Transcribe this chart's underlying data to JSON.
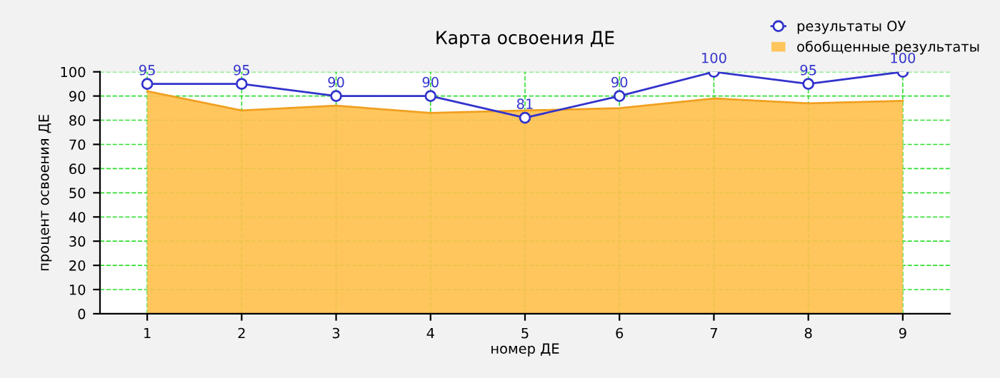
{
  "chart_data": {
    "type": "line",
    "title": "Карта освоения ДЕ",
    "xlabel": "номер ДЕ",
    "ylabel": "процент освоения ДЕ",
    "categories": [
      "1",
      "2",
      "3",
      "4",
      "5",
      "6",
      "7",
      "8",
      "9"
    ],
    "series": [
      {
        "name": "результаты ОУ",
        "color": "#3333cc",
        "marker": "circle",
        "data_labels": true,
        "values": [
          95,
          95,
          90,
          90,
          81,
          90,
          100,
          95,
          100
        ]
      },
      {
        "name": "обобщенные результаты",
        "type": "area",
        "color": "#ffc04c",
        "values": [
          92,
          84,
          86,
          83,
          84,
          85,
          89,
          87,
          88
        ]
      }
    ],
    "ylim": [
      0,
      100
    ],
    "yticks": [
      0,
      10,
      20,
      30,
      40,
      50,
      60,
      70,
      80,
      90,
      100
    ],
    "grid": true,
    "legend": "top right"
  }
}
